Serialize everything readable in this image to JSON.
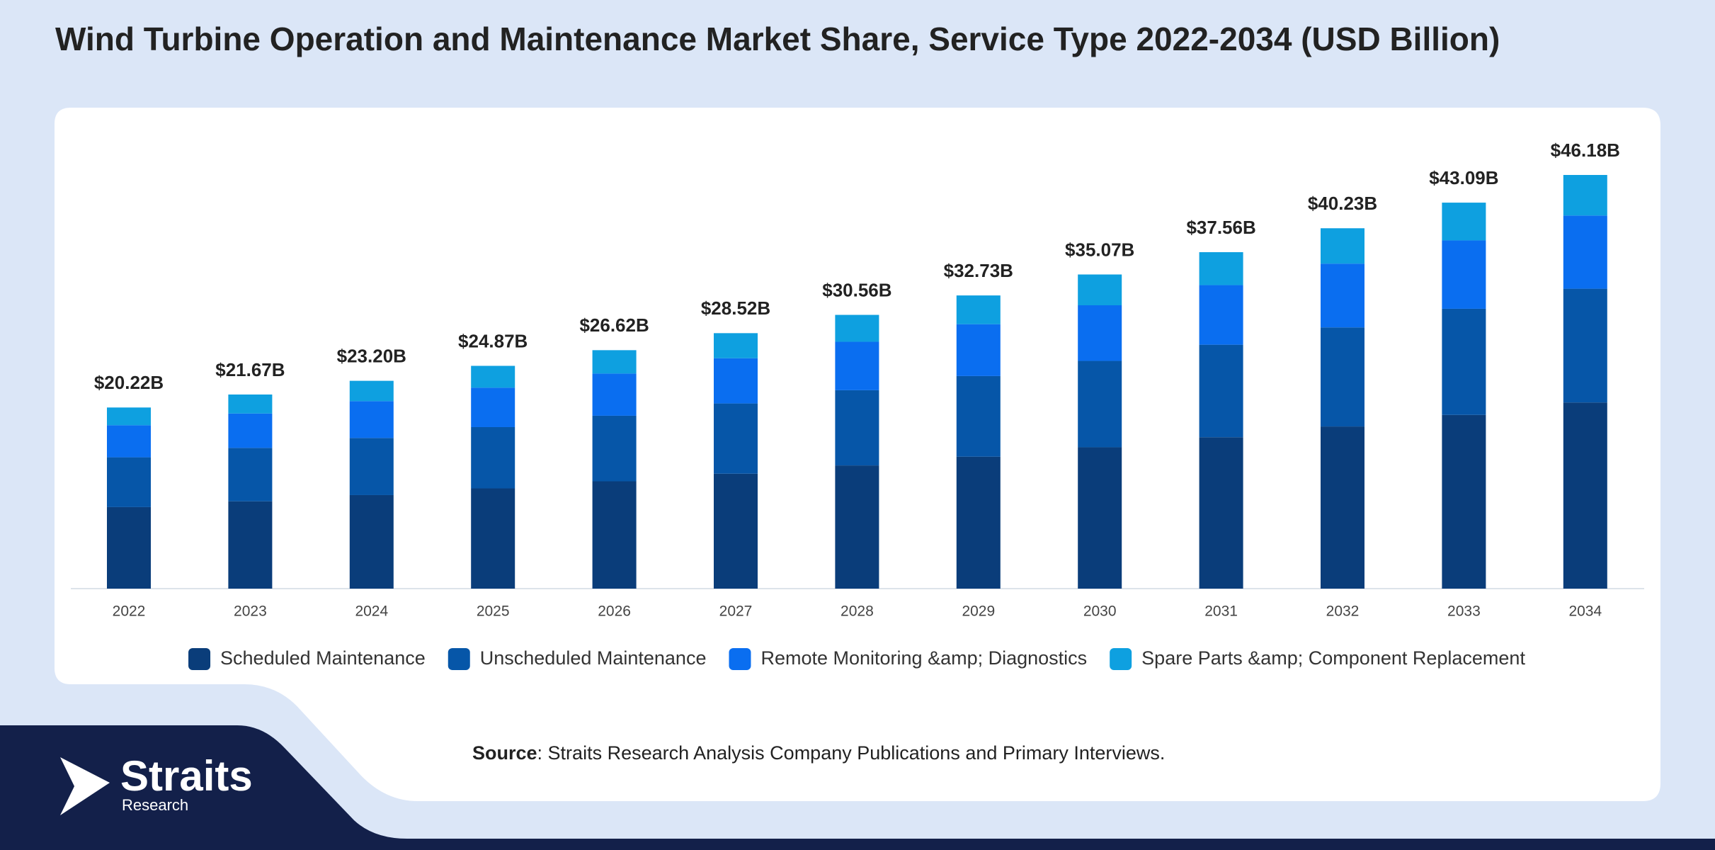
{
  "chart_data": {
    "type": "stacked_bar",
    "title": "Wind Turbine Operation and Maintenance Market Share, Service Type 2022-2034 (USD Billion)",
    "categories": [
      "2022",
      "2023",
      "2024",
      "2025",
      "2026",
      "2027",
      "2028",
      "2029",
      "2030",
      "2031",
      "2032",
      "2033",
      "2034"
    ],
    "series": [
      {
        "name": "Scheduled Maintenance",
        "color": "#0a3d7a",
        "values": [
          9.1,
          9.75,
          10.44,
          11.19,
          11.98,
          12.83,
          13.75,
          14.73,
          15.78,
          16.9,
          18.1,
          19.39,
          20.78
        ]
      },
      {
        "name": "Unscheduled Maintenance",
        "color": "#0656a8",
        "values": [
          5.56,
          5.96,
          6.38,
          6.84,
          7.32,
          7.84,
          8.4,
          9.0,
          9.64,
          10.33,
          11.06,
          11.85,
          12.7
        ]
      },
      {
        "name": "Remote Monitoring &amp; Diagnostics",
        "color": "#0a6ef0",
        "values": [
          3.58,
          3.84,
          4.11,
          4.4,
          4.71,
          5.05,
          5.41,
          5.79,
          6.21,
          6.65,
          7.12,
          7.63,
          8.17
        ]
      },
      {
        "name": "Spare Parts &amp; Component Replacement",
        "color": "#0ea0e0",
        "values": [
          1.98,
          2.12,
          2.27,
          2.44,
          2.61,
          2.8,
          3.0,
          3.21,
          3.44,
          3.68,
          3.95,
          4.22,
          4.53
        ]
      }
    ],
    "totals": {
      "values": [
        20.22,
        21.67,
        23.2,
        24.87,
        26.62,
        28.52,
        30.56,
        32.73,
        35.07,
        37.56,
        40.23,
        43.09,
        46.18
      ],
      "value_labels": [
        "$20.22B",
        "$21.67B",
        "$23.20B",
        "$24.87B",
        "$26.62B",
        "$28.52B",
        "$30.56B",
        "$32.73B",
        "$35.07B",
        "$37.56B",
        "$40.23B",
        "$43.09B",
        "$46.18B"
      ]
    },
    "source": {
      "label": "Source",
      "text": ": Straits Research Analysis Company Publications and Primary Interviews."
    },
    "logo": {
      "name": "Straits",
      "tagline": "Research"
    }
  }
}
